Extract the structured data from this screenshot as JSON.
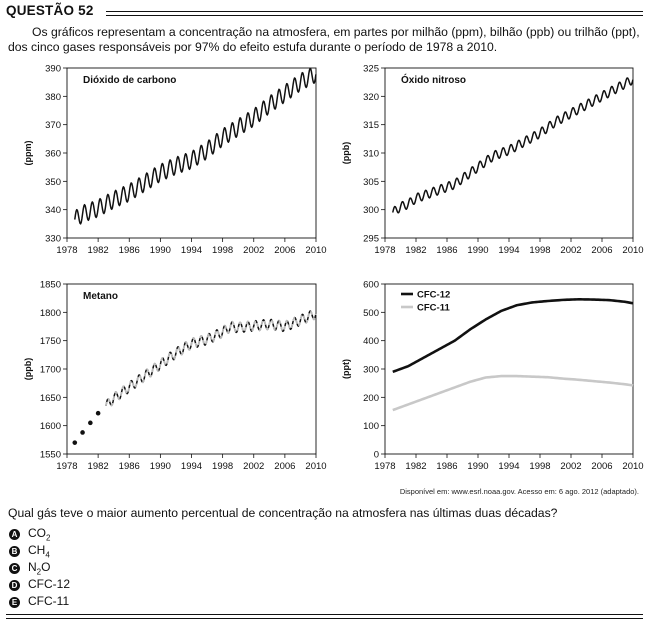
{
  "question_number": "QUESTÃO 52",
  "intro": "Os gráficos representam a concentração na atmosfera, em partes por milhão (ppm), bilhão (ppb) ou trilhão (ppt), dos cinco gases responsáveis por 97% do efeito estufa durante o período de 1978 a 2010.",
  "source": "Disponível em: www.esrl.noaa.gov. Acesso em: 6 ago. 2012 (adaptado).",
  "question": "Qual gás teve o maior aumento percentual de concentração na atmosfera nas últimas duas décadas?",
  "options": [
    {
      "letter": "A",
      "main": "CO",
      "sub": "2",
      "tail": ""
    },
    {
      "letter": "B",
      "main": "CH",
      "sub": "4",
      "tail": ""
    },
    {
      "letter": "C",
      "main": "N",
      "sub": "2",
      "tail": "O"
    },
    {
      "letter": "D",
      "main": "CFC-12",
      "sub": "",
      "tail": ""
    },
    {
      "letter": "E",
      "main": "CFC-11",
      "sub": "",
      "tail": ""
    }
  ],
  "chart_data": [
    {
      "type": "line",
      "title": "Dióxido de carbono",
      "ylabel": "(ppm)",
      "xlim": [
        1978,
        2010
      ],
      "ylim": [
        330,
        390
      ],
      "xticks": [
        1978,
        1982,
        1986,
        1990,
        1994,
        1998,
        2002,
        2006,
        2010
      ],
      "yticks": [
        330,
        340,
        350,
        360,
        370,
        380,
        390
      ],
      "series": [
        {
          "color": "#111111",
          "style": "solid",
          "x": [
            1979,
            1980,
            1982,
            1984,
            1986,
            1988,
            1990,
            1992,
            1994,
            1996,
            1998,
            2000,
            2002,
            2004,
            2006,
            2008,
            2010
          ],
          "values": [
            336.5,
            338.5,
            340.5,
            343.5,
            346,
            349.5,
            353,
            355.5,
            357.5,
            361,
            365.5,
            369,
            372.5,
            377,
            381,
            385,
            388
          ]
        }
      ],
      "seasonal_amplitude": 3
    },
    {
      "type": "line",
      "title": "Óxido nitroso",
      "ylabel": "(ppb)",
      "xlim": [
        1978,
        2010
      ],
      "ylim": [
        295,
        325
      ],
      "xticks": [
        1978,
        1982,
        1986,
        1990,
        1994,
        1998,
        2002,
        2006,
        2010
      ],
      "yticks": [
        295,
        300,
        305,
        310,
        315,
        320,
        325
      ],
      "series": [
        {
          "color": "#111111",
          "style": "solid",
          "x": [
            1979,
            1980,
            1981,
            1982,
            1983,
            1984,
            1985,
            1986,
            1987,
            1988,
            1990,
            1992,
            1994,
            1996,
            1998,
            2000,
            2002,
            2004,
            2006,
            2008,
            2010
          ],
          "values": [
            299.5,
            300.5,
            301,
            302,
            302.5,
            303,
            303.5,
            304,
            304.5,
            305.5,
            307.5,
            309.5,
            310.5,
            312,
            313.5,
            315.5,
            317,
            318.5,
            320,
            321.5,
            323
          ]
        }
      ],
      "seasonal_amplitude": 0.8
    },
    {
      "type": "line",
      "title": "Metano",
      "ylabel": "(ppb)",
      "xlim": [
        1978,
        2010
      ],
      "ylim": [
        1550,
        1850
      ],
      "xticks": [
        1978,
        1982,
        1986,
        1990,
        1994,
        1998,
        2002,
        2006,
        2010
      ],
      "yticks": [
        1550,
        1600,
        1650,
        1700,
        1750,
        1800,
        1850
      ],
      "points": {
        "x": [
          1979,
          1980,
          1981,
          1982
        ],
        "values": [
          1570,
          1588,
          1605,
          1622
        ]
      },
      "series": [
        {
          "color": "#111111",
          "style": "solid",
          "x": [
            1983,
            1984,
            1986,
            1988,
            1990,
            1992,
            1994,
            1996,
            1998,
            1999,
            2000,
            2002,
            2004,
            2006,
            2008,
            2010
          ],
          "values": [
            1635,
            1648,
            1668,
            1688,
            1708,
            1728,
            1745,
            1752,
            1765,
            1775,
            1773,
            1776,
            1779,
            1775,
            1786,
            1798
          ]
        },
        {
          "color": "#bbbbbb",
          "style": "solid",
          "x": [
            1983,
            1984,
            1986,
            1988,
            1990,
            1992,
            1994,
            1996,
            1998,
            1999,
            2000,
            2002,
            2004,
            2006,
            2008,
            2010
          ],
          "values": [
            1635,
            1648,
            1668,
            1688,
            1708,
            1728,
            1745,
            1752,
            1765,
            1775,
            1773,
            1776,
            1779,
            1775,
            1786,
            1798
          ]
        }
      ],
      "seasonal_amplitude": 9
    },
    {
      "type": "line",
      "ylabel": "(ppt)",
      "xlim": [
        1978,
        2010
      ],
      "ylim": [
        0,
        600
      ],
      "xticks": [
        1978,
        1982,
        1986,
        1990,
        1994,
        1998,
        2002,
        2006,
        2010
      ],
      "yticks": [
        0,
        100,
        200,
        300,
        400,
        500,
        600
      ],
      "legend": "top-left",
      "series": [
        {
          "name": "CFC-12",
          "color": "#111111",
          "x": [
            1979,
            1981,
            1983,
            1985,
            1987,
            1989,
            1991,
            1993,
            1995,
            1997,
            1999,
            2001,
            2003,
            2005,
            2007,
            2009,
            2010
          ],
          "values": [
            290,
            310,
            340,
            370,
            400,
            440,
            475,
            505,
            525,
            535,
            540,
            544,
            546,
            545,
            543,
            537,
            532
          ]
        },
        {
          "name": "CFC-11",
          "color": "#c8c8c8",
          "x": [
            1979,
            1981,
            1983,
            1985,
            1987,
            1989,
            1991,
            1993,
            1995,
            1997,
            1999,
            2001,
            2003,
            2005,
            2007,
            2009,
            2010
          ],
          "values": [
            155,
            175,
            195,
            215,
            235,
            255,
            270,
            275,
            275,
            273,
            271,
            266,
            262,
            257,
            252,
            246,
            242
          ]
        }
      ]
    }
  ]
}
